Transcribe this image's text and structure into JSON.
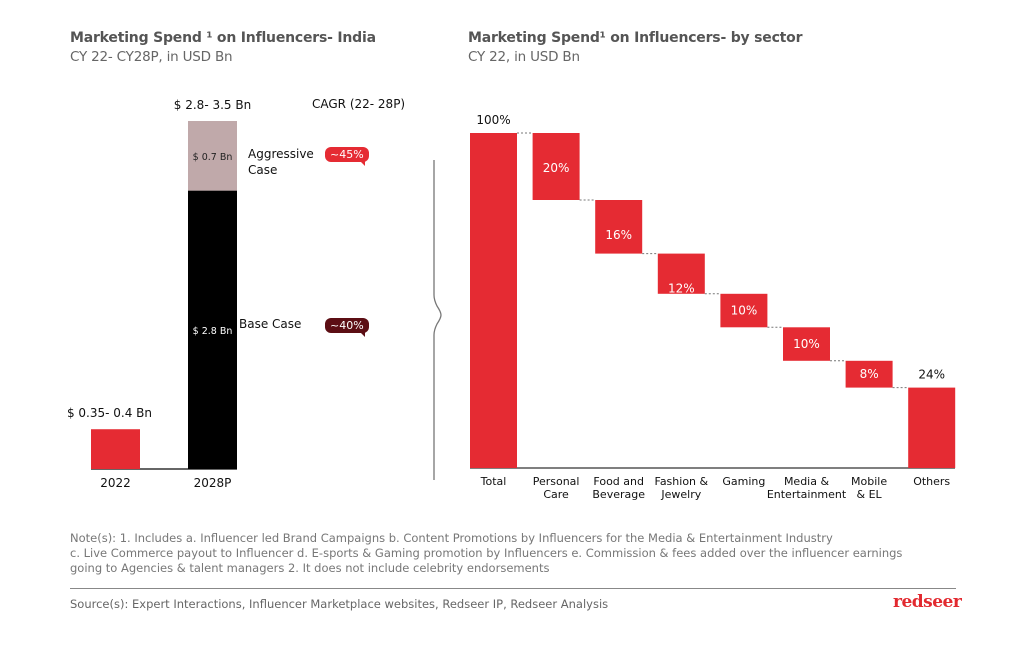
{
  "colors": {
    "red": "#e52b33",
    "black": "#000000",
    "aggressive": "#c0a9aa",
    "badge_aggressive": "#e52b33",
    "badge_base": "#5c0e14",
    "text": "#111111",
    "muted": "#666666"
  },
  "left": {
    "title": "Marketing Spend ¹ on Influencers- India",
    "subtitle": "CY 22- CY28P, in USD Bn",
    "cagr_label": "CAGR (22- 28P)",
    "aggressive_case_label_line1": "Aggressive",
    "aggressive_case_label_line2": "Case",
    "base_case_label": "Base Case",
    "aggressive_badge": "~45%",
    "base_badge": "~40%"
  },
  "right": {
    "title": "Marketing Spend¹ on Influencers- by sector",
    "subtitle": "CY 22, in USD Bn"
  },
  "chart_data": [
    {
      "type": "bar",
      "title": "Marketing Spend ¹ on Influencers- India",
      "subtitle": "CY 22- CY28P, in USD Bn",
      "categories": [
        "2022",
        "2028P"
      ],
      "series": [
        {
          "name": "Base Case",
          "values": [
            0.4,
            2.8
          ]
        },
        {
          "name": "Aggressive Case (increment)",
          "values": [
            0,
            0.7
          ]
        }
      ],
      "total_labels": [
        "$ 0.35- 0.4 Bn",
        "$ 2.8- 3.5 Bn"
      ],
      "segment_labels": {
        "base_2028": "$ 2.8 Bn",
        "aggressive_2028": "$ 0.7 Bn"
      },
      "annotations": [
        {
          "label": "Aggressive Case",
          "cagr": "~45%"
        },
        {
          "label": "Base Case",
          "cagr": "~40%"
        }
      ],
      "cagr_header": "CAGR (22- 28P)",
      "ylim": [
        0,
        3.5
      ],
      "grid": false
    },
    {
      "type": "waterfall",
      "title": "Marketing Spend¹ on Influencers- by sector",
      "subtitle": "CY 22, in USD Bn",
      "categories": [
        "Total",
        "Personal Care",
        "Food and Beverage",
        "Fashion & Jewelry",
        "Gaming",
        "Media & Entertainment",
        "Mobile & EL",
        "Others"
      ],
      "category_lines": [
        [
          "Total"
        ],
        [
          "Personal",
          "Care"
        ],
        [
          "Food and",
          "Beverage"
        ],
        [
          "Fashion &",
          "Jewelry"
        ],
        [
          "Gaming"
        ],
        [
          "Media &",
          "Entertainment"
        ],
        [
          "Mobile",
          "& EL"
        ],
        [
          "Others"
        ]
      ],
      "values": [
        100,
        20,
        16,
        12,
        10,
        10,
        8,
        24
      ],
      "labels": [
        "100%",
        "20%",
        "16%",
        "12%",
        "10%",
        "10%",
        "8%",
        "24%"
      ],
      "ylim": [
        0,
        100
      ],
      "grid": false
    }
  ],
  "notes": {
    "line1": "Note(s): 1. Includes a. Influencer led Brand Campaigns b. Content Promotions by Influencers for the Media & Entertainment Industry",
    "line2": "c. Live Commerce payout to Influencer d. E-sports & Gaming promotion by Influencers  e. Commission & fees added over the influencer earnings",
    "line3": "going to Agencies & talent managers 2. It does not include celebrity endorsements"
  },
  "source": "Source(s):  Expert Interactions, Influencer Marketplace websites, Redseer IP, Redseer Analysis",
  "logo": "redseer"
}
